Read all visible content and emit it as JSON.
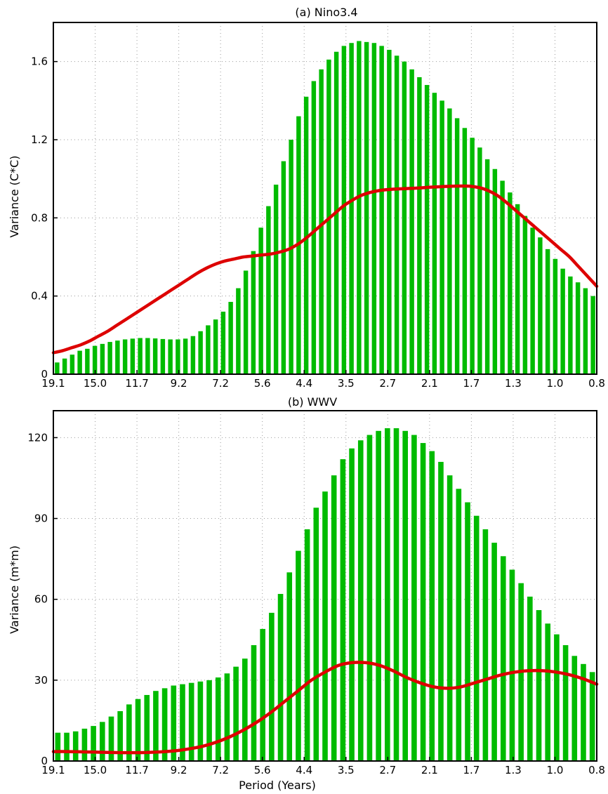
{
  "x_tick_labels": [
    "19.1",
    "15.0",
    "11.7",
    "9.2",
    "7.2",
    "5.6",
    "4.4",
    "3.5",
    "2.7",
    "2.1",
    "1.7",
    "1.3",
    "1.0",
    "0.8"
  ],
  "chart_data": [
    {
      "type": "bar",
      "title": "(a)  Nino3.4",
      "xlabel": "",
      "ylabel": "Variance  (C*C)",
      "ylim": [
        0,
        1.8
      ],
      "yticks": [
        0,
        0.4,
        0.8,
        1.2,
        1.6
      ],
      "ytick_labels": [
        "0",
        "0.4",
        "0.8",
        "1.2",
        "1.6"
      ],
      "x_axis": "Period (years), decreasing left to right",
      "xticks": [
        "19.1",
        "15.0",
        "11.7",
        "9.2",
        "7.2",
        "5.6",
        "4.4",
        "3.5",
        "2.7",
        "2.1",
        "1.7",
        "1.3",
        "1.0",
        "0.8"
      ],
      "bar_color": "#00bb00",
      "line_color": "#dd0000",
      "grid": true,
      "bars": [
        0.06,
        0.08,
        0.1,
        0.12,
        0.13,
        0.145,
        0.155,
        0.165,
        0.172,
        0.178,
        0.182,
        0.185,
        0.185,
        0.183,
        0.18,
        0.178,
        0.178,
        0.182,
        0.195,
        0.22,
        0.25,
        0.28,
        0.32,
        0.37,
        0.44,
        0.53,
        0.63,
        0.75,
        0.86,
        0.97,
        1.09,
        1.2,
        1.32,
        1.42,
        1.5,
        1.56,
        1.61,
        1.65,
        1.68,
        1.695,
        1.705,
        1.7,
        1.695,
        1.68,
        1.66,
        1.63,
        1.6,
        1.56,
        1.52,
        1.48,
        1.44,
        1.4,
        1.36,
        1.31,
        1.26,
        1.21,
        1.16,
        1.1,
        1.05,
        0.99,
        0.93,
        0.87,
        0.81,
        0.75,
        0.7,
        0.64,
        0.59,
        0.54,
        0.5,
        0.47,
        0.44,
        0.4
      ],
      "line": [
        0.11,
        0.12,
        0.135,
        0.15,
        0.17,
        0.195,
        0.22,
        0.25,
        0.28,
        0.31,
        0.34,
        0.37,
        0.4,
        0.43,
        0.46,
        0.49,
        0.52,
        0.545,
        0.565,
        0.58,
        0.59,
        0.6,
        0.605,
        0.61,
        0.615,
        0.625,
        0.64,
        0.665,
        0.7,
        0.74,
        0.78,
        0.82,
        0.86,
        0.89,
        0.915,
        0.93,
        0.94,
        0.945,
        0.948,
        0.95,
        0.952,
        0.955,
        0.958,
        0.96,
        0.962,
        0.963,
        0.962,
        0.955,
        0.94,
        0.915,
        0.88,
        0.84,
        0.8,
        0.76,
        0.72,
        0.68,
        0.64,
        0.6,
        0.55,
        0.5,
        0.45
      ]
    },
    {
      "type": "bar",
      "title": "(b)  WWV",
      "xlabel": "Period  (Years)",
      "ylabel": "Variance  (m*m)",
      "ylim": [
        0,
        130
      ],
      "yticks": [
        0,
        30,
        60,
        90,
        120
      ],
      "ytick_labels": [
        "0",
        "30",
        "60",
        "90",
        "120"
      ],
      "x_axis": "Period (years), decreasing left to right",
      "xticks": [
        "19.1",
        "15.0",
        "11.7",
        "9.2",
        "7.2",
        "5.6",
        "4.4",
        "3.5",
        "2.7",
        "2.1",
        "1.7",
        "1.3",
        "1.0",
        "0.8"
      ],
      "bar_color": "#00bb00",
      "line_color": "#dd0000",
      "grid": true,
      "bars": [
        10.5,
        10.5,
        11,
        12,
        13,
        14.5,
        16.5,
        18.5,
        21,
        23,
        24.5,
        26,
        27,
        28,
        28.5,
        29,
        29.5,
        30,
        31,
        32.5,
        35,
        38,
        43,
        49,
        55,
        62,
        70,
        78,
        86,
        94,
        100,
        106,
        112,
        116,
        119,
        121,
        122.5,
        123.5,
        123.5,
        122.5,
        121,
        118,
        115,
        111,
        106,
        101,
        96,
        91,
        86,
        81,
        76,
        71,
        66,
        61,
        56,
        51,
        47,
        43,
        39,
        36,
        33
      ],
      "line": [
        3.5,
        3.5,
        3.4,
        3.3,
        3.2,
        3.1,
        3.1,
        3.2,
        3.4,
        3.8,
        4.5,
        5.5,
        7,
        9,
        11.5,
        14.5,
        18,
        22,
        26,
        30,
        33,
        35.5,
        36.5,
        36.5,
        35.5,
        33.5,
        31,
        29,
        27.5,
        27,
        27.5,
        29,
        30.5,
        32,
        33,
        33.5,
        33.5,
        33,
        32,
        30.5,
        28.5
      ]
    }
  ]
}
